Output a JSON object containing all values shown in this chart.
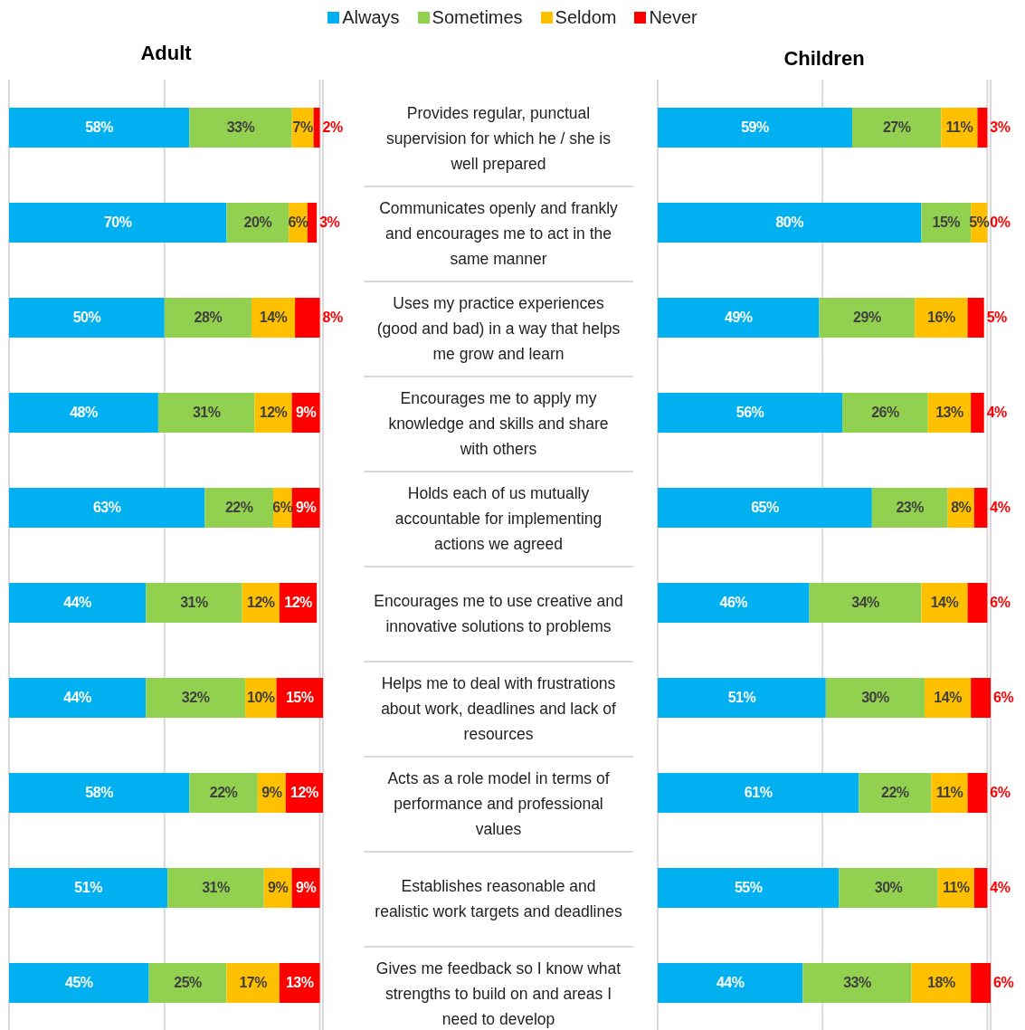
{
  "chart_data": [
    {
      "type": "bar",
      "title": "Adult",
      "orientation": "horizontal",
      "stacked": true,
      "grid": "x",
      "legend": "top",
      "tick_labels": false,
      "xlim": [
        0,
        101
      ],
      "xticks": [
        0,
        50,
        100
      ],
      "categories": [
        "Provides regular, punctual supervision for which he / she is well prepared",
        "Communicates openly and frankly and encourages me to act in the same manner",
        "Uses my practice experiences (good and bad) in a way that helps me grow and learn",
        "Encourages me to apply my knowledge and skills and share with others",
        "Holds each of us mutually accountable for implementing actions we agreed",
        "Encourages me to use creative and innovative solutions to problems",
        "Helps me to deal with frustrations about work, deadlines and lack of resources",
        "Acts as a role model in terms of performance and professional values",
        "Establishes reasonable and realistic work targets and deadlines",
        "Gives me feedback so I know what strengths to build on and areas I need to develop"
      ],
      "series": [
        {
          "name": "Always",
          "color": "#00b0f0",
          "values": [
            58,
            70,
            50,
            48,
            63,
            44,
            44,
            58,
            51,
            45
          ],
          "value_labels": [
            "58%",
            "70%",
            "50%",
            "48%",
            "63%",
            "44%",
            "44%",
            "58%",
            "51%",
            "45%"
          ]
        },
        {
          "name": "Sometimes",
          "color": "#92d050",
          "values": [
            33,
            20,
            28,
            31,
            22,
            31,
            32,
            22,
            31,
            25
          ],
          "value_labels": [
            "33%",
            "20%",
            "28%",
            "31%",
            "22%",
            "31%",
            "32%",
            "22%",
            "31%",
            "25%"
          ]
        },
        {
          "name": "Seldom",
          "color": "#ffc000",
          "values": [
            7,
            6,
            14,
            12,
            6,
            12,
            10,
            9,
            9,
            17
          ],
          "value_labels": [
            "7%",
            "6%",
            "14%",
            "12%",
            "6%",
            "12%",
            "10%",
            "9%",
            "9%",
            "17%"
          ]
        },
        {
          "name": "Never",
          "color": "#ff0000",
          "values": [
            2,
            3,
            8,
            9,
            9,
            12,
            15,
            12,
            9,
            13
          ],
          "value_labels": [
            "2%",
            "3%",
            "8%",
            "9%",
            "9%",
            "12%",
            "15%",
            "12%",
            "9%",
            "13%"
          ]
        }
      ]
    },
    {
      "type": "bar",
      "title": "Children",
      "orientation": "horizontal",
      "stacked": true,
      "grid": "x",
      "tick_labels": false,
      "xlim": [
        0,
        101
      ],
      "xticks": [
        0,
        50,
        100
      ],
      "categories": [
        null,
        null,
        null,
        null,
        null,
        null,
        null,
        null,
        null,
        null
      ],
      "series": [
        {
          "color": "#00b0f0",
          "values": [
            59,
            80,
            49,
            56,
            65,
            46,
            51,
            61,
            55,
            44
          ],
          "value_labels": [
            "59%",
            "80%",
            "49%",
            "56%",
            "65%",
            "46%",
            "51%",
            "61%",
            "55%",
            "44%"
          ]
        },
        {
          "color": "#92d050",
          "values": [
            27,
            15,
            29,
            26,
            23,
            34,
            30,
            22,
            30,
            33
          ],
          "value_labels": [
            "27%",
            "15%",
            "29%",
            "26%",
            "23%",
            "34%",
            "30%",
            "22%",
            "30%",
            "33%"
          ]
        },
        {
          "color": "#ffc000",
          "values": [
            11,
            5,
            16,
            13,
            8,
            14,
            14,
            11,
            11,
            18
          ],
          "value_labels": [
            "11%",
            "5%",
            "16%",
            "13%",
            "8%",
            "14%",
            "14%",
            "11%",
            "11%",
            "18%"
          ]
        },
        {
          "color": "#ff0000",
          "values": [
            3,
            0,
            5,
            4,
            4,
            6,
            6,
            6,
            4,
            6
          ],
          "value_labels": [
            "3%",
            "0%",
            "5%",
            "4%",
            "4%",
            "6%",
            "6%",
            "6%",
            "4%",
            "6%"
          ]
        }
      ]
    }
  ]
}
